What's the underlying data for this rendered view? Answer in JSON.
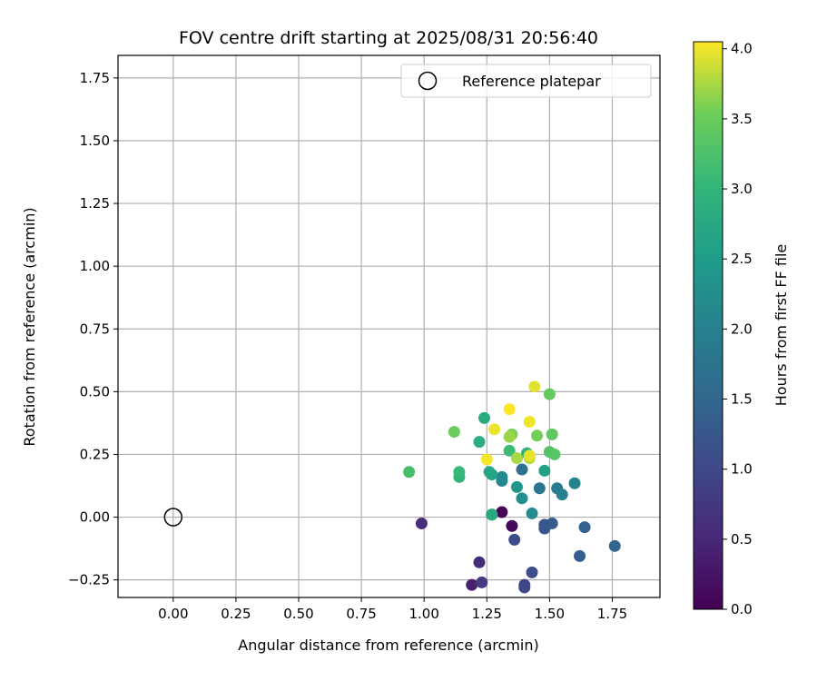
{
  "chart_data": {
    "type": "scatter",
    "title": "FOV centre drift starting at 2025/08/31 20:56:40",
    "xlabel": "Angular distance from reference (arcmin)",
    "ylabel": "Rotation from reference (arcmin)",
    "xlim": [
      -0.22,
      1.94
    ],
    "ylim": [
      -0.32,
      1.84
    ],
    "xticks": [
      0.0,
      0.25,
      0.5,
      0.75,
      1.0,
      1.25,
      1.5,
      1.75
    ],
    "xtick_labels": [
      "0.00",
      "0.25",
      "0.50",
      "0.75",
      "1.00",
      "1.25",
      "1.50",
      "1.75"
    ],
    "yticks": [
      -0.25,
      0.0,
      0.25,
      0.5,
      0.75,
      1.0,
      1.25,
      1.5,
      1.75
    ],
    "ytick_labels": [
      "−0.25",
      "0.00",
      "0.25",
      "0.50",
      "0.75",
      "1.00",
      "1.25",
      "1.50",
      "1.75"
    ],
    "grid": true,
    "legend": {
      "placement": "top-right",
      "entries": [
        "Reference platepar"
      ]
    },
    "reference_point": {
      "x": 0.0,
      "y": 0.0
    },
    "colorbar": {
      "label": "Hours from first FF file",
      "colormap": "viridis",
      "range": [
        0.0,
        4.05
      ],
      "ticks": [
        0.0,
        0.5,
        1.0,
        1.5,
        2.0,
        2.5,
        3.0,
        3.5,
        4.0
      ],
      "tick_labels": [
        "0.0",
        "0.5",
        "1.0",
        "1.5",
        "2.0",
        "2.5",
        "3.0",
        "3.5",
        "4.0"
      ]
    },
    "points": [
      {
        "x": 1.31,
        "y": 0.02,
        "hours": 0.02
      },
      {
        "x": 1.35,
        "y": -0.035,
        "hours": 0.08
      },
      {
        "x": 1.27,
        "y": 0.01,
        "hours": 0.15
      },
      {
        "x": 1.19,
        "y": -0.27,
        "hours": 0.4
      },
      {
        "x": 1.22,
        "y": -0.18,
        "hours": 0.55
      },
      {
        "x": 0.99,
        "y": -0.025,
        "hours": 0.6
      },
      {
        "x": 1.23,
        "y": -0.26,
        "hours": 0.8
      },
      {
        "x": 1.4,
        "y": -0.27,
        "hours": 0.9
      },
      {
        "x": 1.4,
        "y": -0.28,
        "hours": 1.0
      },
      {
        "x": 1.36,
        "y": -0.09,
        "hours": 1.05
      },
      {
        "x": 1.43,
        "y": -0.22,
        "hours": 1.1
      },
      {
        "x": 1.48,
        "y": -0.045,
        "hours": 1.2
      },
      {
        "x": 1.48,
        "y": -0.03,
        "hours": 1.25
      },
      {
        "x": 1.51,
        "y": -0.025,
        "hours": 1.3
      },
      {
        "x": 1.62,
        "y": -0.155,
        "hours": 1.35
      },
      {
        "x": 1.64,
        "y": -0.04,
        "hours": 1.4
      },
      {
        "x": 1.76,
        "y": -0.115,
        "hours": 1.5
      },
      {
        "x": 1.39,
        "y": 0.19,
        "hours": 1.7
      },
      {
        "x": 1.46,
        "y": 0.115,
        "hours": 1.8
      },
      {
        "x": 1.53,
        "y": 0.115,
        "hours": 1.9
      },
      {
        "x": 1.55,
        "y": 0.09,
        "hours": 2.0
      },
      {
        "x": 1.6,
        "y": 0.135,
        "hours": 2.05
      },
      {
        "x": 1.31,
        "y": 0.145,
        "hours": 2.1
      },
      {
        "x": 1.31,
        "y": 0.16,
        "hours": 2.15
      },
      {
        "x": 1.43,
        "y": 0.015,
        "hours": 2.2
      },
      {
        "x": 1.39,
        "y": 0.075,
        "hours": 2.3
      },
      {
        "x": 1.37,
        "y": 0.12,
        "hours": 2.4
      },
      {
        "x": 1.48,
        "y": 0.185,
        "hours": 2.6
      },
      {
        "x": 1.27,
        "y": 0.17,
        "hours": 2.65
      },
      {
        "x": 1.26,
        "y": 0.18,
        "hours": 2.7
      },
      {
        "x": 1.27,
        "y": 0.01,
        "hours": 2.75
      },
      {
        "x": 1.24,
        "y": 0.395,
        "hours": 2.8
      },
      {
        "x": 1.22,
        "y": 0.3,
        "hours": 2.85
      },
      {
        "x": 1.41,
        "y": 0.255,
        "hours": 2.9
      },
      {
        "x": 1.14,
        "y": 0.16,
        "hours": 3.0
      },
      {
        "x": 1.14,
        "y": 0.18,
        "hours": 3.05
      },
      {
        "x": 1.34,
        "y": 0.265,
        "hours": 3.1
      },
      {
        "x": 0.94,
        "y": 0.18,
        "hours": 3.2
      },
      {
        "x": 1.5,
        "y": 0.26,
        "hours": 3.3
      },
      {
        "x": 1.52,
        "y": 0.25,
        "hours": 3.35
      },
      {
        "x": 1.51,
        "y": 0.33,
        "hours": 3.4
      },
      {
        "x": 1.5,
        "y": 0.49,
        "hours": 3.45
      },
      {
        "x": 1.12,
        "y": 0.34,
        "hours": 3.5
      },
      {
        "x": 1.45,
        "y": 0.325,
        "hours": 3.55
      },
      {
        "x": 1.35,
        "y": 0.33,
        "hours": 3.6
      },
      {
        "x": 1.34,
        "y": 0.32,
        "hours": 3.7
      },
      {
        "x": 1.37,
        "y": 0.235,
        "hours": 3.75
      },
      {
        "x": 1.42,
        "y": 0.235,
        "hours": 3.8
      },
      {
        "x": 1.44,
        "y": 0.52,
        "hours": 3.95
      },
      {
        "x": 1.42,
        "y": 0.38,
        "hours": 4.0
      },
      {
        "x": 1.34,
        "y": 0.43,
        "hours": 4.05
      },
      {
        "x": 1.42,
        "y": 0.245,
        "hours": 3.97
      },
      {
        "x": 1.25,
        "y": 0.23,
        "hours": 4.02
      },
      {
        "x": 1.28,
        "y": 0.35,
        "hours": 3.98
      }
    ]
  }
}
